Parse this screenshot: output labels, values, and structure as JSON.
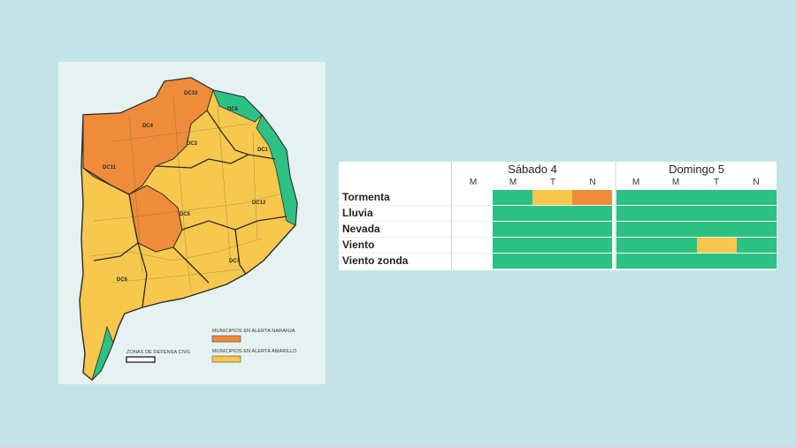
{
  "colors": {
    "orange": "#ee8c3b",
    "yellow": "#f7c84e",
    "green": "#2ec184",
    "border": "#2a2a2a"
  },
  "map": {
    "zone_labels": [
      "DC10",
      "DC8",
      "DC4",
      "DC3",
      "DC1",
      "DC11",
      "DC5",
      "DC12",
      "DC7",
      "DC6"
    ],
    "legend": {
      "orange_label": "MUNICIPIOS EN ALERTA NARANJA",
      "yellow_label": "MUNICIPIOS EN ALERTA AMARILLO",
      "zones_label": "ZONAS DE DEFENSA CIVIL"
    }
  },
  "table": {
    "days": [
      {
        "title": "Sábado 4",
        "periods": [
          "M",
          "M",
          "T",
          "N"
        ]
      },
      {
        "title": "Domingo 5",
        "periods": [
          "M",
          "M",
          "T",
          "N"
        ]
      }
    ],
    "rows": [
      {
        "label": "Tormenta",
        "levels": [
          "none",
          "green",
          "yellow",
          "orange",
          "green",
          "green",
          "green",
          "green"
        ]
      },
      {
        "label": "Lluvia",
        "levels": [
          "none",
          "green",
          "green",
          "green",
          "green",
          "green",
          "green",
          "green"
        ]
      },
      {
        "label": "Nevada",
        "levels": [
          "none",
          "green",
          "green",
          "green",
          "green",
          "green",
          "green",
          "green"
        ]
      },
      {
        "label": "Viento",
        "levels": [
          "none",
          "green",
          "green",
          "green",
          "green",
          "green",
          "yellow",
          "green"
        ]
      },
      {
        "label": "Viento zonda",
        "levels": [
          "none",
          "green",
          "green",
          "green",
          "green",
          "green",
          "green",
          "green"
        ]
      }
    ]
  }
}
